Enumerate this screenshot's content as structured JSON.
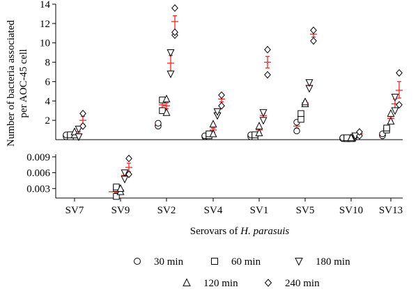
{
  "chart_data": {
    "type": "scatter",
    "ylabel_line1": "Number of bacteria associated",
    "ylabel_line2": "per AOC-45 cell",
    "xlabel_prefix": "Serovars of ",
    "xlabel_species": "H. parasuis",
    "categories": [
      "SV7",
      "SV9",
      "SV2",
      "SV4",
      "SV1",
      "SV5",
      "SV10",
      "SV13"
    ],
    "upper_panel": {
      "ylim": [
        0,
        14
      ],
      "ticks": [
        "2",
        "4",
        "6",
        "8",
        "10",
        "12",
        "14"
      ]
    },
    "lower_panel": {
      "ylim": [
        0.0012,
        0.0095
      ],
      "ticks": [
        "0.003",
        "0.006",
        "0.009"
      ]
    },
    "series": [
      {
        "name": "30 min",
        "marker": "circle",
        "values": [
          0.4,
          0.0024,
          1.5,
          0.4,
          0.4,
          1.4,
          0.2,
          0.5
        ]
      },
      {
        "name": "60 min",
        "marker": "square",
        "values": [
          0.4,
          0.0024,
          3.6,
          0.5,
          0.4,
          2.4,
          0.2,
          1.1
        ]
      },
      {
        "name": "120 min",
        "marker": "triangle-up",
        "values": [
          0.6,
          0.0027,
          3.5,
          1.0,
          1.0,
          3.8,
          0.2,
          2.2
        ]
      },
      {
        "name": "180 min",
        "marker": "triangle-down",
        "values": [
          0.6,
          0.0055,
          7.9,
          2.7,
          2.5,
          5.6,
          0.3,
          3.7
        ]
      },
      {
        "name": "240 min",
        "marker": "diamond",
        "values": [
          2.0,
          0.007,
          12.2,
          4.2,
          8.0,
          10.9,
          0.6,
          5.1
        ]
      }
    ],
    "points": [
      [
        [
          0.3,
          0.5
        ],
        [
          0.3,
          0.5
        ],
        [
          1.4,
          1.7
        ],
        [
          0.3,
          0.4
        ],
        [
          0.3,
          0.5
        ],
        [
          0.9,
          1.8
        ],
        [
          0.1,
          0.2
        ],
        [
          0.4,
          0.6
        ]
      ],
      [
        [
          0.3,
          0.5
        ],
        [
          0.0015,
          0.003,
          0.0033
        ],
        [
          3.0,
          4.1
        ],
        [
          0.4,
          0.6
        ],
        [
          0.3,
          0.5
        ],
        [
          2.1,
          2.7
        ],
        [
          0.1,
          0.2
        ],
        [
          1.0,
          1.2
        ]
      ],
      [
        [
          0.5,
          0.8
        ],
        [
          0.0024,
          0.003
        ],
        [
          2.8,
          4.2
        ],
        [
          0.6,
          1.6
        ],
        [
          0.7,
          1.4
        ],
        [
          3.7,
          3.9
        ],
        [
          0.1,
          0.2
        ],
        [
          1.9,
          2.7
        ]
      ],
      [
        [
          0.3,
          1.1
        ],
        [
          0.0048,
          0.006
        ],
        [
          6.8,
          9.0
        ],
        [
          2.5,
          2.9
        ],
        [
          2.0,
          2.8
        ],
        [
          5.3,
          5.9
        ],
        [
          0.2,
          0.4
        ],
        [
          3.0,
          4.4
        ]
      ],
      [
        [
          1.4,
          2.7
        ],
        [
          0.0057,
          0.0087
        ],
        [
          10.8,
          11.1,
          13.6
        ],
        [
          3.5,
          4.6
        ],
        [
          6.7,
          9.3
        ],
        [
          10.2,
          11.3
        ],
        [
          0.4,
          0.8
        ],
        [
          3.6,
          6.9
        ]
      ]
    ],
    "errors": [
      [
        [
          0.3,
          0.5
        ],
        [
          0.3,
          0.5
        ],
        [
          1.45,
          1.6
        ],
        [
          0.35,
          0.45
        ],
        [
          0.35,
          0.45
        ],
        [
          1.2,
          1.6
        ],
        [
          0.15,
          0.2
        ],
        [
          0.45,
          0.55
        ]
      ],
      [
        [
          0.35,
          0.45
        ],
        [
          0.0022,
          0.0027
        ],
        [
          3.3,
          3.9
        ],
        [
          0.45,
          0.55
        ],
        [
          0.35,
          0.45
        ],
        [
          2.2,
          2.6
        ],
        [
          0.15,
          0.2
        ],
        [
          1.0,
          1.2
        ]
      ],
      [
        [
          0.5,
          0.7
        ],
        [
          0.0025,
          0.003
        ],
        [
          3.2,
          3.8
        ],
        [
          0.8,
          1.2
        ],
        [
          0.8,
          1.2
        ],
        [
          3.6,
          4.0
        ],
        [
          0.15,
          0.25
        ],
        [
          2.0,
          2.4
        ]
      ],
      [
        [
          0.4,
          0.8
        ],
        [
          0.0048,
          0.0062
        ],
        [
          7.1,
          8.7
        ],
        [
          2.5,
          2.9
        ],
        [
          2.3,
          2.7
        ],
        [
          5.3,
          5.9
        ],
        [
          0.25,
          0.35
        ],
        [
          3.2,
          4.2
        ]
      ],
      [
        [
          1.6,
          2.4
        ],
        [
          0.0062,
          0.0078
        ],
        [
          11.0,
          12.8
        ],
        [
          3.9,
          4.5
        ],
        [
          7.4,
          8.6
        ],
        [
          10.6,
          11.2
        ],
        [
          0.5,
          0.7
        ],
        [
          4.3,
          6.0
        ]
      ]
    ],
    "legend": [
      "30 min",
      "60 min",
      "180 min",
      "120 min",
      "240 min"
    ],
    "error_color": "#ff2020",
    "marker_color": "#000000"
  }
}
